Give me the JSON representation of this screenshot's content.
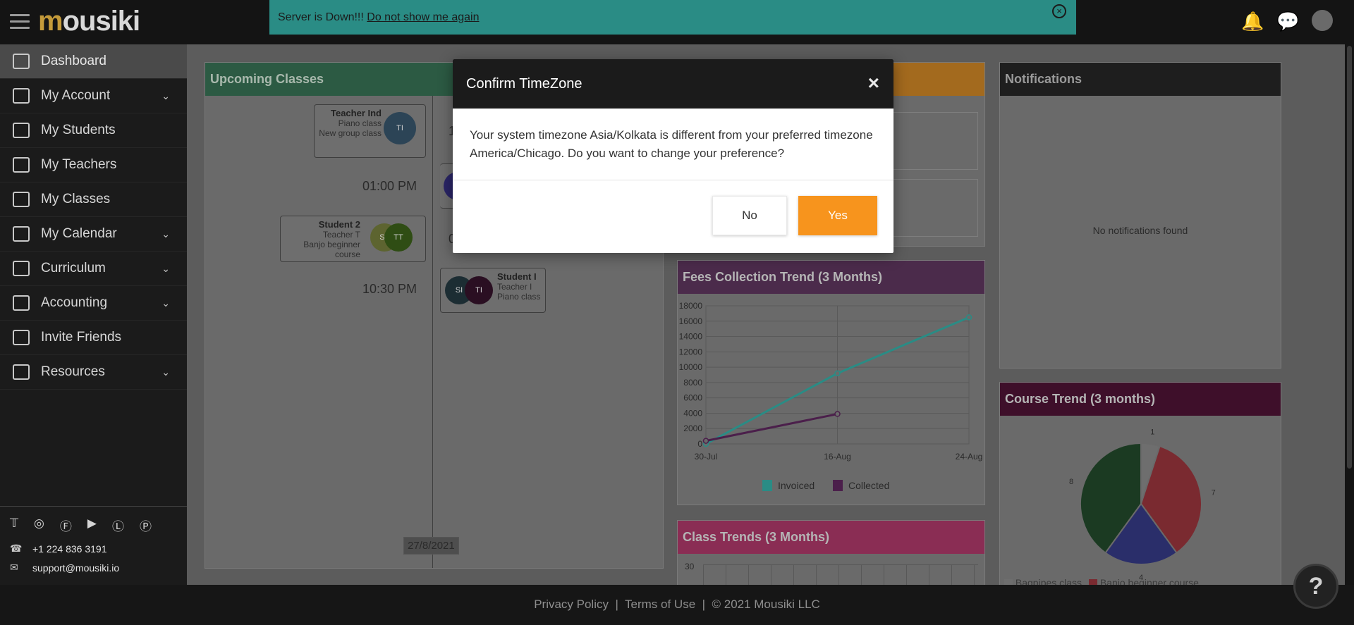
{
  "app": {
    "logo": "mousiki",
    "logo_initial": "m"
  },
  "banner": {
    "message": "Server is Down!!! ",
    "link": "Do not show me again",
    "close": "×"
  },
  "sidebar": {
    "items": [
      {
        "label": "Dashboard",
        "active": true,
        "expandable": false
      },
      {
        "label": "My Account",
        "expandable": true
      },
      {
        "label": "My Students",
        "expandable": false
      },
      {
        "label": "My Teachers",
        "expandable": false
      },
      {
        "label": "My Classes",
        "expandable": false
      },
      {
        "label": "My Calendar",
        "expandable": true
      },
      {
        "label": "Curriculum",
        "expandable": true
      },
      {
        "label": "Accounting",
        "expandable": true
      },
      {
        "label": "Invite Friends",
        "expandable": false
      },
      {
        "label": "Resources",
        "expandable": true
      }
    ],
    "phone": "+1 224 836 3191",
    "email": "support@mousiki.io"
  },
  "upcoming": {
    "title": "Upcoming Classes",
    "cards": [
      {
        "name": "Teacher Ind",
        "line1": "Piano class",
        "line2": "New group class",
        "initials": "TI"
      },
      {
        "name": "Student 2",
        "line1": "Teacher T",
        "line2": "Banjo beginner course",
        "initials_a": "S2",
        "initials_b": "TT"
      },
      {
        "name": "Student I",
        "line1": "Teacher I",
        "line2": "Piano class",
        "initials_a": "SI",
        "initials_b": "TI"
      }
    ],
    "times": [
      "01:00 PM",
      "10:30 PM"
    ],
    "partial_times": [
      "1",
      "0"
    ],
    "date": "27/8/2021"
  },
  "fees": {
    "title": "Fees Collection Trend (3 Months)",
    "legend_invoiced": "Invoiced",
    "legend_collected": "Collected"
  },
  "class_trends": {
    "title": "Class Trends (3 Months)",
    "y_top": "30"
  },
  "notifications": {
    "title": "Notifications",
    "empty": "No notifications found"
  },
  "course": {
    "title": "Course Trend (3 months)",
    "labels": [
      "1",
      "7",
      "4",
      "8"
    ],
    "legend": [
      "Bagpipes class",
      "Banjo beginner course"
    ]
  },
  "chart_data": [
    {
      "type": "line",
      "title": "Fees Collection Trend (3 Months)",
      "categories": [
        "30-Jul",
        "16-Aug",
        "24-Aug"
      ],
      "series": [
        {
          "name": "Invoiced",
          "values": [
            0,
            9200,
            16500
          ],
          "color": "#2a8c85"
        },
        {
          "name": "Collected",
          "values": [
            400,
            3900,
            null
          ],
          "color": "#4b1f4b"
        }
      ],
      "yticks": [
        0,
        2000,
        4000,
        6000,
        8000,
        10000,
        12000,
        14000,
        16000,
        18000
      ],
      "ylim": [
        0,
        18000
      ]
    },
    {
      "type": "pie",
      "title": "Course Trend (3 months)",
      "slices": [
        {
          "label": "Bagpipes class",
          "value": 1,
          "color": "#6e6e6e"
        },
        {
          "label": "Banjo beginner course",
          "value": 7,
          "color": "#7a2a30"
        },
        {
          "label": "",
          "value": 4,
          "color": "#2a2e6a"
        },
        {
          "label": "",
          "value": 8,
          "color": "#1b3a22"
        }
      ]
    }
  ],
  "modal": {
    "title": "Confirm TimeZone",
    "close": "×",
    "body": "Your system timezone Asia/Kolkata is different from your preferred timezone America/Chicago. Do you want to change your preference?",
    "no": "No",
    "yes": "Yes"
  },
  "footer": {
    "privacy": "Privacy Policy",
    "terms": "Terms of Use",
    "copyright": "© 2021 Mousiki LLC",
    "sep": "|"
  },
  "help": {
    "label": "?"
  }
}
